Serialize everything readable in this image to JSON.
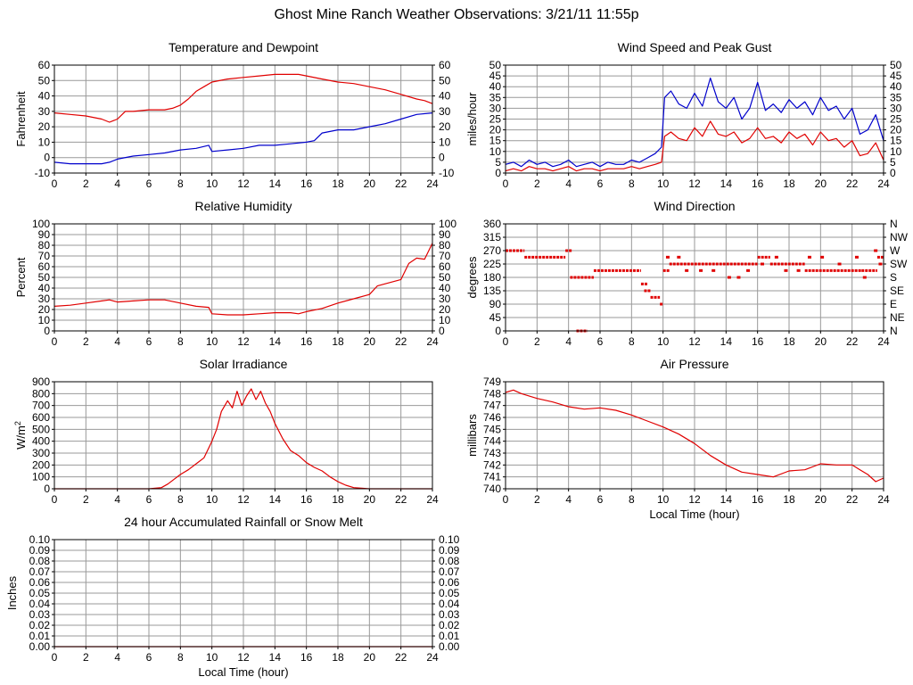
{
  "page": {
    "title": "Ghost Mine Ranch Weather Observations: 3/21/11 11:55p",
    "colors": {
      "axis": "#000000",
      "grid": "#999999",
      "red": "#e00000",
      "blue": "#0000cc"
    }
  },
  "chart_data": [
    {
      "id": "temp",
      "type": "line",
      "title": "Temperature and Dewpoint",
      "xlabel": "",
      "ylabel": "Fahrenheit",
      "xlim": [
        0,
        24
      ],
      "ylim": [
        -10,
        60
      ],
      "xticks": [
        0,
        2,
        4,
        6,
        8,
        10,
        12,
        14,
        16,
        18,
        20,
        22,
        24
      ],
      "yticks": [
        -10,
        0,
        10,
        20,
        30,
        40,
        50,
        60
      ],
      "ytick_labels": [
        "-10",
        "0",
        "10",
        "20",
        "30",
        "40",
        "50",
        "60"
      ],
      "right_ticks": true,
      "right_tick_labels": [
        "-10",
        "0",
        "10",
        "20",
        "30",
        "40",
        "50",
        "60"
      ],
      "grid": true,
      "series": [
        {
          "name": "Temperature",
          "color": "#e00000",
          "x": [
            0,
            1,
            2,
            3,
            3.5,
            4,
            4.5,
            5,
            6,
            7,
            7.5,
            8,
            8.5,
            9,
            9.5,
            10,
            11,
            12,
            13,
            14,
            15,
            15.5,
            16,
            17,
            18,
            19,
            20,
            21,
            22,
            23,
            23.5,
            24
          ],
          "y": [
            29,
            28,
            27,
            25,
            23,
            25,
            30,
            30,
            31,
            31,
            32,
            34,
            38,
            43,
            46,
            49,
            51,
            52,
            53,
            54,
            54,
            54,
            53,
            51,
            49,
            48,
            46,
            44,
            41,
            38,
            37,
            35
          ]
        },
        {
          "name": "Dewpoint",
          "color": "#0000cc",
          "x": [
            0,
            1,
            2,
            3,
            3.5,
            4,
            5,
            6,
            7,
            8,
            9,
            9.8,
            10,
            11,
            12,
            13,
            14,
            15,
            16,
            16.5,
            17,
            18,
            19,
            20,
            21,
            22,
            23,
            24
          ],
          "y": [
            -3,
            -4,
            -4,
            -4,
            -3,
            -1,
            1,
            2,
            3,
            5,
            6,
            8,
            4,
            5,
            6,
            8,
            8,
            9,
            10,
            11,
            16,
            18,
            18,
            20,
            22,
            25,
            28,
            29
          ]
        }
      ]
    },
    {
      "id": "wind",
      "type": "line",
      "title": "Wind Speed and Peak Gust",
      "xlabel": "",
      "ylabel": "miles/hour",
      "xlim": [
        0,
        24
      ],
      "ylim": [
        0,
        50
      ],
      "xticks": [
        0,
        2,
        4,
        6,
        8,
        10,
        12,
        14,
        16,
        18,
        20,
        22,
        24
      ],
      "yticks": [
        0,
        5,
        10,
        15,
        20,
        25,
        30,
        35,
        40,
        45,
        50
      ],
      "ytick_labels": [
        "0",
        "5",
        "10",
        "15",
        "20",
        "25",
        "30",
        "35",
        "40",
        "45",
        "50"
      ],
      "right_ticks": true,
      "right_tick_labels": [
        "0",
        "5",
        "10",
        "15",
        "20",
        "25",
        "30",
        "35",
        "40",
        "45",
        "50"
      ],
      "grid": true,
      "series": [
        {
          "name": "Peak Gust",
          "color": "#0000cc",
          "x": [
            0,
            0.5,
            1,
            1.5,
            2,
            2.5,
            3,
            3.5,
            4,
            4.5,
            5,
            5.5,
            6,
            6.5,
            7,
            7.5,
            8,
            8.5,
            9,
            9.5,
            9.9,
            10.1,
            10.5,
            11,
            11.5,
            12,
            12.5,
            13,
            13.5,
            14,
            14.5,
            15,
            15.5,
            16,
            16.5,
            17,
            17.5,
            18,
            18.5,
            19,
            19.5,
            20,
            20.5,
            21,
            21.5,
            22,
            22.5,
            23,
            23.5,
            24
          ],
          "y": [
            4,
            5,
            3,
            6,
            4,
            5,
            3,
            4,
            6,
            3,
            4,
            5,
            3,
            5,
            4,
            4,
            6,
            5,
            7,
            9,
            12,
            35,
            38,
            32,
            30,
            37,
            31,
            44,
            33,
            30,
            35,
            25,
            30,
            42,
            29,
            32,
            28,
            34,
            30,
            33,
            27,
            35,
            29,
            31,
            25,
            30,
            18,
            20,
            27,
            15
          ]
        },
        {
          "name": "Wind Speed",
          "color": "#e00000",
          "x": [
            0,
            0.5,
            1,
            1.5,
            2,
            2.5,
            3,
            3.5,
            4,
            4.5,
            5,
            5.5,
            6,
            6.5,
            7,
            7.5,
            8,
            8.5,
            9,
            9.5,
            9.9,
            10.1,
            10.5,
            11,
            11.5,
            12,
            12.5,
            13,
            13.5,
            14,
            14.5,
            15,
            15.5,
            16,
            16.5,
            17,
            17.5,
            18,
            18.5,
            19,
            19.5,
            20,
            20.5,
            21,
            21.5,
            22,
            22.5,
            23,
            23.5,
            24
          ],
          "y": [
            1,
            2,
            1,
            3,
            2,
            2,
            1,
            2,
            3,
            1,
            2,
            2,
            1,
            2,
            2,
            2,
            3,
            2,
            3,
            4,
            5,
            17,
            19,
            16,
            15,
            21,
            17,
            24,
            18,
            17,
            19,
            14,
            16,
            21,
            16,
            17,
            14,
            19,
            16,
            18,
            13,
            19,
            15,
            16,
            12,
            15,
            8,
            9,
            14,
            6
          ]
        }
      ]
    },
    {
      "id": "rh",
      "type": "line",
      "title": "Relative Humidity",
      "xlabel": "",
      "ylabel": "Percent",
      "xlim": [
        0,
        24
      ],
      "ylim": [
        0,
        100
      ],
      "xticks": [
        0,
        2,
        4,
        6,
        8,
        10,
        12,
        14,
        16,
        18,
        20,
        22,
        24
      ],
      "yticks": [
        0,
        10,
        20,
        30,
        40,
        50,
        60,
        70,
        80,
        90,
        100
      ],
      "ytick_labels": [
        "0",
        "10",
        "20",
        "30",
        "40",
        "50",
        "60",
        "70",
        "80",
        "90",
        "100"
      ],
      "right_ticks": true,
      "right_tick_labels": [
        "0",
        "10",
        "20",
        "30",
        "40",
        "50",
        "60",
        "70",
        "80",
        "90",
        "100"
      ],
      "grid": true,
      "series": [
        {
          "name": "Relative Humidity",
          "color": "#e00000",
          "x": [
            0,
            1,
            2,
            3,
            3.5,
            4,
            5,
            6,
            7,
            8,
            9,
            9.8,
            10,
            11,
            12,
            13,
            14,
            15,
            15.5,
            16,
            17,
            18,
            19,
            20,
            20.5,
            21,
            22,
            22.5,
            23,
            23.5,
            24
          ],
          "y": [
            23,
            24,
            26,
            28,
            29,
            27,
            28,
            29,
            29,
            26,
            23,
            22,
            16,
            15,
            15,
            16,
            17,
            17,
            16,
            18,
            21,
            26,
            30,
            34,
            42,
            44,
            48,
            63,
            68,
            67,
            82
          ]
        }
      ]
    },
    {
      "id": "wdir",
      "type": "scatter",
      "title": "Wind Direction",
      "xlabel": "",
      "ylabel": "degrees",
      "xlim": [
        0,
        24
      ],
      "ylim": [
        0,
        360
      ],
      "xticks": [
        0,
        2,
        4,
        6,
        8,
        10,
        12,
        14,
        16,
        18,
        20,
        22,
        24
      ],
      "yticks": [
        0,
        45,
        90,
        135,
        180,
        225,
        270,
        315,
        360
      ],
      "ytick_labels": [
        "0",
        "45",
        "90",
        "135",
        "180",
        "225",
        "270",
        "315",
        "360"
      ],
      "right_ticks": true,
      "right_tick_labels": [
        "N",
        "NE",
        "E",
        "SE",
        "S",
        "SW",
        "W",
        "NW",
        "N"
      ],
      "grid": true,
      "series": [
        {
          "name": "Wind Direction",
          "color": "#e00000",
          "segments": [
            {
              "x0": 0,
              "x1": 1.2,
              "y": 270
            },
            {
              "x0": 1.2,
              "x1": 3.8,
              "y": 248
            },
            {
              "x0": 3.8,
              "x1": 4.2,
              "y": 270
            },
            {
              "x0": 4.1,
              "x1": 5.6,
              "y": 180
            },
            {
              "x0": 4.5,
              "x1": 5.2,
              "y": 0
            },
            {
              "x0": 5.6,
              "x1": 8.6,
              "y": 203
            },
            {
              "x0": 8.6,
              "x1": 9,
              "y": 158
            },
            {
              "x0": 8.8,
              "x1": 9.2,
              "y": 135
            },
            {
              "x0": 9.2,
              "x1": 9.8,
              "y": 113
            },
            {
              "x0": 9.8,
              "x1": 10,
              "y": 90
            },
            {
              "x0": 10,
              "x1": 10.4,
              "y": 203
            },
            {
              "x0": 10.4,
              "x1": 16,
              "y": 225
            },
            {
              "x0": 16,
              "x1": 16.8,
              "y": 248
            },
            {
              "x0": 16.8,
              "x1": 19,
              "y": 225
            },
            {
              "x0": 19,
              "x1": 22.6,
              "y": 203
            },
            {
              "x0": 22.6,
              "x1": 23.6,
              "y": 203
            },
            {
              "x0": 23.6,
              "x1": 24,
              "y": 248
            }
          ],
          "x": [
            10.3,
            11,
            11.5,
            12.4,
            13.2,
            14.2,
            14.8,
            15.4,
            16.3,
            17.2,
            17.8,
            18.6,
            19.3,
            20.1,
            21.2,
            22.3,
            22.8,
            23.5,
            23.8
          ],
          "y": [
            248,
            248,
            203,
            203,
            203,
            180,
            180,
            203,
            225,
            248,
            203,
            203,
            248,
            248,
            225,
            248,
            180,
            270,
            225
          ]
        }
      ]
    },
    {
      "id": "solar",
      "type": "line",
      "title": "Solar Irradiance",
      "xlabel": "",
      "ylabel": "W/m2",
      "xlim": [
        0,
        24
      ],
      "ylim": [
        0,
        900
      ],
      "xticks": [
        0,
        2,
        4,
        6,
        8,
        10,
        12,
        14,
        16,
        18,
        20,
        22,
        24
      ],
      "yticks": [
        0,
        100,
        200,
        300,
        400,
        500,
        600,
        700,
        800,
        900
      ],
      "ytick_labels": [
        "0",
        "100",
        "200",
        "300",
        "400",
        "500",
        "600",
        "700",
        "800",
        "900"
      ],
      "right_ticks": false,
      "grid": true,
      "series": [
        {
          "name": "Solar Irradiance",
          "color": "#e00000",
          "x": [
            0,
            6,
            6.8,
            7.2,
            7.6,
            8,
            8.5,
            9,
            9.5,
            10,
            10.3,
            10.6,
            11,
            11.3,
            11.6,
            11.9,
            12.2,
            12.5,
            12.8,
            13.1,
            13.4,
            13.7,
            14,
            14.5,
            15,
            15.5,
            16,
            16.5,
            17,
            17.5,
            18,
            18.5,
            19,
            19.5,
            20,
            24
          ],
          "y": [
            0,
            0,
            10,
            40,
            80,
            120,
            160,
            210,
            260,
            400,
            500,
            650,
            740,
            680,
            820,
            700,
            780,
            840,
            750,
            820,
            720,
            650,
            550,
            420,
            320,
            280,
            220,
            180,
            150,
            100,
            60,
            30,
            10,
            5,
            0,
            0
          ]
        }
      ]
    },
    {
      "id": "pressure",
      "type": "line",
      "title": "Air Pressure",
      "xlabel": "Local Time (hour)",
      "ylabel": "millibars",
      "xlim": [
        0,
        24
      ],
      "ylim": [
        740,
        749
      ],
      "xticks": [
        0,
        2,
        4,
        6,
        8,
        10,
        12,
        14,
        16,
        18,
        20,
        22,
        24
      ],
      "yticks": [
        740,
        741,
        742,
        743,
        744,
        745,
        746,
        747,
        748,
        749
      ],
      "ytick_labels": [
        "740",
        "741",
        "742",
        "743",
        "744",
        "745",
        "746",
        "747",
        "748",
        "749"
      ],
      "right_ticks": false,
      "grid": true,
      "series": [
        {
          "name": "Air Pressure",
          "color": "#e00000",
          "x": [
            0,
            0.5,
            1,
            2,
            3,
            4,
            5,
            6,
            7,
            8,
            9,
            10,
            11,
            12,
            13,
            14,
            15,
            16,
            17,
            18,
            19,
            20,
            21,
            22,
            22.5,
            23,
            23.5,
            24
          ],
          "y": [
            748.1,
            748.3,
            748.0,
            747.6,
            747.3,
            746.9,
            746.7,
            746.8,
            746.6,
            746.2,
            745.7,
            745.2,
            744.6,
            743.8,
            742.8,
            742.0,
            741.4,
            741.2,
            741.0,
            741.5,
            741.6,
            742.1,
            742.0,
            742.0,
            741.6,
            741.2,
            740.6,
            740.9
          ]
        }
      ]
    },
    {
      "id": "rain",
      "type": "line",
      "title": "24 hour Accumulated Rainfall or Snow Melt",
      "xlabel": "Local Time (hour)",
      "ylabel": "Inches",
      "xlim": [
        0,
        24
      ],
      "ylim": [
        0,
        0.1
      ],
      "xticks": [
        0,
        2,
        4,
        6,
        8,
        10,
        12,
        14,
        16,
        18,
        20,
        22,
        24
      ],
      "yticks": [
        0,
        0.01,
        0.02,
        0.03,
        0.04,
        0.05,
        0.06,
        0.07,
        0.08,
        0.09,
        0.1
      ],
      "ytick_labels": [
        "0.00",
        "0.01",
        "0.02",
        "0.03",
        "0.04",
        "0.05",
        "0.06",
        "0.07",
        "0.08",
        "0.09",
        "0.10"
      ],
      "right_ticks": true,
      "right_tick_labels": [
        "0.00",
        "0.01",
        "0.02",
        "0.03",
        "0.04",
        "0.05",
        "0.06",
        "0.07",
        "0.08",
        "0.09",
        "0.10"
      ],
      "grid": true,
      "series": [
        {
          "name": "Rainfall",
          "color": "#e00000",
          "x": [
            0,
            24
          ],
          "y": [
            0,
            0
          ]
        }
      ]
    }
  ]
}
